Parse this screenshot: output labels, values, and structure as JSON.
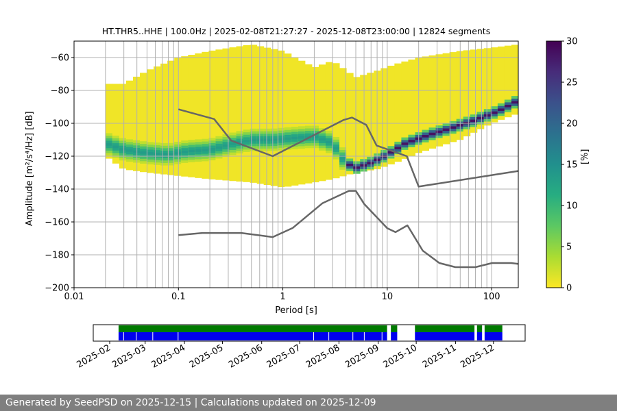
{
  "chart_data": {
    "type": "heatmap",
    "title": "HT.THR5..HHE | 100.0Hz | 2025-02-08T21:27:27 - 2025-12-08T23:00:00 | 12824 segments",
    "xlabel": "Period [s]",
    "ylabel": "Amplitude [m²/s⁴/Hz] [dB]",
    "x_scale": "log",
    "xlim": [
      0.01,
      180
    ],
    "ylim": [
      -200,
      -50
    ],
    "x_tick_labels": [
      "0.01",
      "0.1",
      "1",
      "10",
      "100"
    ],
    "x_tick_values": [
      0.01,
      0.1,
      1,
      10,
      100
    ],
    "y_ticks": [
      -60,
      -80,
      -100,
      -120,
      -140,
      -160,
      -180,
      -200
    ],
    "grid": true,
    "colorbar": {
      "label": "[%]",
      "min": 0,
      "max": 30,
      "ticks": [
        0,
        5,
        10,
        15,
        20,
        25,
        30
      ]
    },
    "ppsd_mode": {
      "period": [
        0.02,
        0.03,
        0.05,
        0.08,
        0.12,
        0.2,
        0.35,
        0.5,
        0.8,
        1.2,
        2,
        3,
        4,
        5,
        7,
        10,
        15,
        25,
        40,
        70,
        120,
        180
      ],
      "db": [
        -112,
        -116,
        -118,
        -119,
        -117,
        -116,
        -112,
        -110,
        -110,
        -109,
        -108,
        -112,
        -124,
        -127,
        -124,
        -119,
        -112,
        -107,
        -103,
        -98,
        -92,
        -86
      ]
    },
    "ppsd_extent": {
      "period": [
        0.02,
        0.03,
        0.05,
        0.1,
        0.2,
        0.5,
        1,
        2,
        3,
        5,
        8,
        12,
        20,
        50,
        100,
        180
      ],
      "upper_db": [
        -76,
        -76,
        -68,
        -60,
        -56,
        -52,
        -56,
        -66,
        -62,
        -72,
        -68,
        -64,
        -60,
        -56,
        -54,
        -52
      ],
      "lower_db": [
        -120,
        -128,
        -130,
        -132,
        -134,
        -136,
        -139,
        -136,
        -134,
        -130,
        -128,
        -124,
        -118,
        -110,
        -100,
        -94
      ]
    },
    "nhnm": {
      "period": [
        0.1,
        0.22,
        0.32,
        0.8,
        3.8,
        4.6,
        6.3,
        7.9,
        15.4,
        20,
        180
      ],
      "db": [
        -91.5,
        -97.4,
        -110.5,
        -120,
        -98,
        -96.5,
        -101,
        -113.5,
        -120,
        -138.5,
        -129
      ]
    },
    "nlnm": {
      "period": [
        0.1,
        0.17,
        0.4,
        0.8,
        1.24,
        2.4,
        4.3,
        5,
        6,
        10,
        12,
        15.6,
        21.9,
        31.6,
        45,
        70,
        101,
        154,
        180
      ],
      "db": [
        -168,
        -166.7,
        -166.7,
        -169.2,
        -163.7,
        -148.6,
        -141.1,
        -141.1,
        -149,
        -163.8,
        -166.2,
        -162.1,
        -177.5,
        -185,
        -187.5,
        -187.5,
        -185,
        -185,
        -185.5
      ]
    },
    "availability": {
      "date_ticks": [
        "2025-02",
        "2025-03",
        "2025-04",
        "2025-05",
        "2025-06",
        "2025-07",
        "2025-08",
        "2025-09",
        "2025-10",
        "2025-11",
        "2025-12"
      ],
      "date_range": [
        "2025-01-19",
        "2025-12-26"
      ],
      "data_segments": [
        [
          "2025-02-08",
          "2025-09-08"
        ],
        [
          "2025-09-11",
          "2025-09-16"
        ],
        [
          "2025-09-30",
          "2025-11-16"
        ],
        [
          "2025-11-18",
          "2025-11-22"
        ],
        [
          "2025-11-24",
          "2025-12-08"
        ]
      ],
      "gaps": [
        "2025-02-12",
        "2025-02-22",
        "2025-03-07",
        "2025-03-27",
        "2025-07-12",
        "2025-07-24",
        "2025-08-12",
        "2025-08-21",
        "2025-09-04"
      ],
      "colors": {
        "data": "#0000ee",
        "quality": "#007a00"
      }
    }
  },
  "footer": {
    "text": "Generated by SeedPSD on 2025-12-15 | Calculations updated on 2025-12-09"
  }
}
